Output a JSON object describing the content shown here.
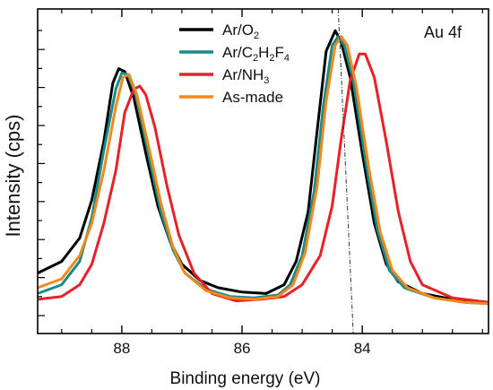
{
  "chart_data": {
    "type": "line",
    "xlabel": "Binding energy (eV)",
    "ylabel": "Intensity (cps)",
    "xlim": [
      89.4,
      81.9
    ],
    "ylim": [
      0,
      1
    ],
    "x_reversed": true,
    "y_ticklabels_shown": false,
    "grid": false,
    "legend_position": "top-center",
    "annotation": "Au 4f",
    "x_ticks": [
      88,
      86,
      84
    ],
    "x_tick_labels": [
      "88",
      "86",
      "84"
    ],
    "reference_line": {
      "x_top": 84.4,
      "x_bottom": 84.15,
      "style": "dash-dot"
    },
    "series": [
      {
        "name": "Ar/O2",
        "legend_main": "Ar/O",
        "legend_sub": "2",
        "color": "#000000",
        "points": [
          [
            89.4,
            0.17
          ],
          [
            89.0,
            0.21
          ],
          [
            88.7,
            0.29
          ],
          [
            88.5,
            0.42
          ],
          [
            88.3,
            0.62
          ],
          [
            88.15,
            0.82
          ],
          [
            88.05,
            0.87
          ],
          [
            87.95,
            0.86
          ],
          [
            87.8,
            0.77
          ],
          [
            87.6,
            0.58
          ],
          [
            87.4,
            0.4
          ],
          [
            87.2,
            0.28
          ],
          [
            87.0,
            0.2
          ],
          [
            86.7,
            0.145
          ],
          [
            86.4,
            0.12
          ],
          [
            86.0,
            0.105
          ],
          [
            85.6,
            0.1
          ],
          [
            85.3,
            0.13
          ],
          [
            85.1,
            0.21
          ],
          [
            84.9,
            0.38
          ],
          [
            84.75,
            0.66
          ],
          [
            84.6,
            0.93
          ],
          [
            84.45,
            1.0
          ],
          [
            84.35,
            0.96
          ],
          [
            84.2,
            0.84
          ],
          [
            84.0,
            0.58
          ],
          [
            83.8,
            0.34
          ],
          [
            83.6,
            0.2
          ],
          [
            83.4,
            0.14
          ],
          [
            83.0,
            0.1
          ],
          [
            82.5,
            0.08
          ],
          [
            81.9,
            0.07
          ]
        ]
      },
      {
        "name": "Ar/C2H2F4",
        "legend_main": "Ar/C",
        "legend_parts": [
          "Ar/C",
          "2",
          "H",
          "2",
          "F",
          "4"
        ],
        "color": "#1a8a8a",
        "points": [
          [
            89.4,
            0.1
          ],
          [
            89.0,
            0.13
          ],
          [
            88.7,
            0.21
          ],
          [
            88.5,
            0.36
          ],
          [
            88.3,
            0.59
          ],
          [
            88.1,
            0.8
          ],
          [
            88.0,
            0.855
          ],
          [
            87.9,
            0.85
          ],
          [
            87.75,
            0.77
          ],
          [
            87.55,
            0.57
          ],
          [
            87.35,
            0.38
          ],
          [
            87.15,
            0.25
          ],
          [
            86.95,
            0.17
          ],
          [
            86.6,
            0.115
          ],
          [
            86.2,
            0.09
          ],
          [
            85.8,
            0.085
          ],
          [
            85.4,
            0.095
          ],
          [
            85.2,
            0.13
          ],
          [
            85.0,
            0.23
          ],
          [
            84.8,
            0.45
          ],
          [
            84.65,
            0.74
          ],
          [
            84.5,
            0.95
          ],
          [
            84.4,
            0.98
          ],
          [
            84.3,
            0.95
          ],
          [
            84.15,
            0.83
          ],
          [
            83.95,
            0.56
          ],
          [
            83.75,
            0.32
          ],
          [
            83.55,
            0.18
          ],
          [
            83.3,
            0.12
          ],
          [
            82.8,
            0.085
          ],
          [
            82.3,
            0.07
          ],
          [
            81.9,
            0.065
          ]
        ]
      },
      {
        "name": "Ar/NH3",
        "legend_main": "Ar/NH",
        "legend_sub": "3",
        "color": "#e8202a",
        "points": [
          [
            89.4,
            0.08
          ],
          [
            89.0,
            0.09
          ],
          [
            88.7,
            0.13
          ],
          [
            88.5,
            0.2
          ],
          [
            88.3,
            0.34
          ],
          [
            88.1,
            0.52
          ],
          [
            87.95,
            0.72
          ],
          [
            87.8,
            0.8
          ],
          [
            87.7,
            0.81
          ],
          [
            87.6,
            0.78
          ],
          [
            87.45,
            0.67
          ],
          [
            87.25,
            0.47
          ],
          [
            87.05,
            0.3
          ],
          [
            86.8,
            0.17
          ],
          [
            86.5,
            0.1
          ],
          [
            86.1,
            0.075
          ],
          [
            85.7,
            0.08
          ],
          [
            85.3,
            0.09
          ],
          [
            85.0,
            0.13
          ],
          [
            84.7,
            0.23
          ],
          [
            84.5,
            0.4
          ],
          [
            84.35,
            0.63
          ],
          [
            84.2,
            0.83
          ],
          [
            84.05,
            0.92
          ],
          [
            83.95,
            0.92
          ],
          [
            83.8,
            0.84
          ],
          [
            83.6,
            0.62
          ],
          [
            83.4,
            0.38
          ],
          [
            83.2,
            0.21
          ],
          [
            83.0,
            0.13
          ],
          [
            82.5,
            0.085
          ],
          [
            81.9,
            0.07
          ]
        ]
      },
      {
        "name": "As-made",
        "legend_main": "As-made",
        "color": "#f08a1c",
        "points": [
          [
            89.4,
            0.12
          ],
          [
            89.0,
            0.15
          ],
          [
            88.7,
            0.23
          ],
          [
            88.5,
            0.34
          ],
          [
            88.3,
            0.52
          ],
          [
            88.1,
            0.74
          ],
          [
            87.98,
            0.84
          ],
          [
            87.88,
            0.85
          ],
          [
            87.75,
            0.78
          ],
          [
            87.55,
            0.6
          ],
          [
            87.35,
            0.41
          ],
          [
            87.15,
            0.26
          ],
          [
            86.95,
            0.17
          ],
          [
            86.6,
            0.11
          ],
          [
            86.2,
            0.085
          ],
          [
            85.8,
            0.08
          ],
          [
            85.4,
            0.09
          ],
          [
            85.15,
            0.13
          ],
          [
            84.95,
            0.24
          ],
          [
            84.75,
            0.47
          ],
          [
            84.6,
            0.76
          ],
          [
            84.45,
            0.95
          ],
          [
            84.35,
            0.98
          ],
          [
            84.25,
            0.95
          ],
          [
            84.1,
            0.81
          ],
          [
            83.9,
            0.54
          ],
          [
            83.7,
            0.31
          ],
          [
            83.5,
            0.18
          ],
          [
            83.25,
            0.12
          ],
          [
            82.8,
            0.085
          ],
          [
            82.3,
            0.07
          ],
          [
            81.9,
            0.065
          ]
        ]
      }
    ]
  }
}
